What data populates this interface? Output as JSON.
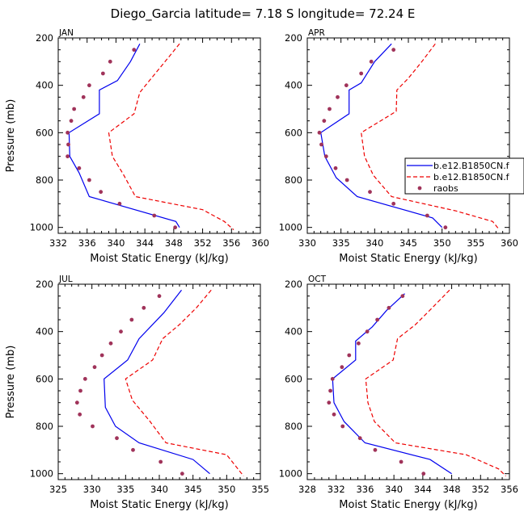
{
  "figure": {
    "title": "Diego_Garcia   latitude= 7.18 S longitude= 72.24 E",
    "series_names": [
      "b.e12.B1850CN.f",
      "b.e12.B1850CN.f",
      "raobs"
    ],
    "colors": {
      "series1": "#0000ee",
      "series2": "#ee0000",
      "raobs": "#a0335a"
    }
  },
  "legend": {
    "entries": [
      "b.e12.B1850CN.f",
      "b.e12.B1850CN.f",
      "raobs"
    ]
  },
  "chart_data": [
    {
      "type": "line",
      "panel": "JAN",
      "title": "JAN",
      "xlabel": "Moist Static Energy (kJ/kg)",
      "ylabel": "Pressure (mb)",
      "xlim": [
        332,
        360
      ],
      "ylim": [
        200,
        1025
      ],
      "xticks": [
        332,
        336,
        340,
        344,
        348,
        352,
        356,
        360
      ],
      "yticks": [
        200,
        400,
        600,
        800,
        1000
      ],
      "series": [
        {
          "name": "b.e12.B1850CN.f",
          "style": "solid",
          "points": [
            [
              343.3,
              225
            ],
            [
              342.0,
              300
            ],
            [
              340.2,
              380
            ],
            [
              337.7,
              420
            ],
            [
              337.7,
              520
            ],
            [
              333.5,
              600
            ],
            [
              333.6,
              700
            ],
            [
              334.9,
              770
            ],
            [
              336.3,
              870
            ],
            [
              348.3,
              975
            ],
            [
              348.8,
              1000
            ]
          ]
        },
        {
          "name": "b.e12.B1850CN.f",
          "style": "dashed",
          "points": [
            [
              348.8,
              225
            ],
            [
              346.8,
              300
            ],
            [
              344.9,
              370
            ],
            [
              343.3,
              430
            ],
            [
              342.5,
              520
            ],
            [
              339.0,
              600
            ],
            [
              339.5,
              700
            ],
            [
              341.0,
              775
            ],
            [
              342.7,
              870
            ],
            [
              352.0,
              925
            ],
            [
              355.0,
              975
            ],
            [
              356.3,
              1010
            ]
          ]
        },
        {
          "name": "raobs",
          "style": "dots",
          "points": [
            [
              342.5,
              250
            ],
            [
              339.2,
              300
            ],
            [
              338.2,
              350
            ],
            [
              336.3,
              400
            ],
            [
              335.5,
              450
            ],
            [
              334.2,
              500
            ],
            [
              333.8,
              550
            ],
            [
              333.3,
              600
            ],
            [
              333.4,
              650
            ],
            [
              333.3,
              700
            ],
            [
              334.9,
              750
            ],
            [
              336.3,
              800
            ],
            [
              337.9,
              850
            ],
            [
              340.5,
              900
            ],
            [
              345.3,
              950
            ],
            [
              348.2,
              1000
            ]
          ]
        }
      ]
    },
    {
      "type": "line",
      "panel": "APR",
      "title": "APR",
      "xlabel": "Moist Static Energy (kJ/kg)",
      "ylabel": "",
      "xlim": [
        330,
        360
      ],
      "ylim": [
        200,
        1025
      ],
      "xticks": [
        330,
        335,
        340,
        345,
        350,
        355,
        360
      ],
      "yticks": [
        200,
        400,
        600,
        800,
        1000
      ],
      "series": [
        {
          "name": "b.e12.B1850CN.f",
          "style": "solid",
          "points": [
            [
              342.5,
              225
            ],
            [
              340.0,
              300
            ],
            [
              338.0,
              390
            ],
            [
              336.2,
              420
            ],
            [
              336.2,
              520
            ],
            [
              332.0,
              600
            ],
            [
              332.6,
              700
            ],
            [
              334.3,
              790
            ],
            [
              337.4,
              870
            ],
            [
              348.6,
              960
            ],
            [
              350.0,
              1000
            ]
          ]
        },
        {
          "name": "b.e12.B1850CN.f",
          "style": "dashed",
          "points": [
            [
              349.0,
              225
            ],
            [
              347.0,
              300
            ],
            [
              345.0,
              370
            ],
            [
              343.3,
              420
            ],
            [
              343.2,
              510
            ],
            [
              338.0,
              600
            ],
            [
              338.5,
              700
            ],
            [
              339.8,
              780
            ],
            [
              342.5,
              870
            ],
            [
              352.0,
              930
            ],
            [
              357.5,
              975
            ],
            [
              358.5,
              1010
            ]
          ]
        },
        {
          "name": "raobs",
          "style": "dots",
          "points": [
            [
              342.8,
              250
            ],
            [
              339.5,
              300
            ],
            [
              338.0,
              350
            ],
            [
              335.8,
              400
            ],
            [
              334.5,
              450
            ],
            [
              333.3,
              500
            ],
            [
              332.5,
              550
            ],
            [
              331.8,
              600
            ],
            [
              332.1,
              650
            ],
            [
              332.8,
              700
            ],
            [
              334.2,
              750
            ],
            [
              335.9,
              800
            ],
            [
              339.3,
              850
            ],
            [
              342.8,
              900
            ],
            [
              347.8,
              950
            ],
            [
              350.5,
              1000
            ]
          ]
        }
      ]
    },
    {
      "type": "line",
      "panel": "JUL",
      "title": "JUL",
      "xlabel": "Moist Static Energy (kJ/kg)",
      "ylabel": "Pressure (mb)",
      "xlim": [
        325,
        355
      ],
      "ylim": [
        200,
        1025
      ],
      "xticks": [
        325,
        330,
        335,
        340,
        345,
        350,
        355
      ],
      "yticks": [
        200,
        400,
        600,
        800,
        1000
      ],
      "series": [
        {
          "name": "b.e12.B1850CN.f",
          "style": "solid",
          "points": [
            [
              343.3,
              225
            ],
            [
              340.7,
              320
            ],
            [
              337.0,
              430
            ],
            [
              335.3,
              520
            ],
            [
              331.8,
              600
            ],
            [
              332.0,
              720
            ],
            [
              333.5,
              800
            ],
            [
              337.0,
              870
            ],
            [
              345.0,
              940
            ],
            [
              347.5,
              1000
            ]
          ]
        },
        {
          "name": "b.e12.B1850CN.f",
          "style": "dashed",
          "points": [
            [
              347.7,
              225
            ],
            [
              345.5,
              300
            ],
            [
              343.0,
              370
            ],
            [
              340.5,
              430
            ],
            [
              339.0,
              520
            ],
            [
              335.0,
              600
            ],
            [
              336.0,
              690
            ],
            [
              338.5,
              775
            ],
            [
              341.0,
              870
            ],
            [
              350.0,
              920
            ],
            [
              352.5,
              1010
            ]
          ]
        },
        {
          "name": "raobs",
          "style": "dots",
          "points": [
            [
              340.0,
              250
            ],
            [
              337.7,
              300
            ],
            [
              335.9,
              350
            ],
            [
              334.3,
              400
            ],
            [
              332.8,
              450
            ],
            [
              331.5,
              500
            ],
            [
              330.4,
              550
            ],
            [
              329.0,
              600
            ],
            [
              328.3,
              650
            ],
            [
              327.8,
              700
            ],
            [
              328.2,
              750
            ],
            [
              330.1,
              800
            ],
            [
              333.7,
              850
            ],
            [
              336.1,
              900
            ],
            [
              340.2,
              950
            ],
            [
              343.4,
              1000
            ]
          ]
        }
      ]
    },
    {
      "type": "line",
      "panel": "OCT",
      "title": "OCT",
      "xlabel": "Moist Static Energy (kJ/kg)",
      "ylabel": "",
      "xlim": [
        328,
        356
      ],
      "ylim": [
        200,
        1025
      ],
      "xticks": [
        328,
        332,
        336,
        340,
        344,
        348,
        352,
        356
      ],
      "yticks": [
        200,
        400,
        600,
        800,
        1000
      ],
      "series": [
        {
          "name": "b.e12.B1850CN.f",
          "style": "solid",
          "points": [
            [
              341.5,
              240
            ],
            [
              339.0,
              310
            ],
            [
              337.0,
              380
            ],
            [
              334.7,
              440
            ],
            [
              334.7,
              520
            ],
            [
              331.5,
              600
            ],
            [
              331.7,
              700
            ],
            [
              333.1,
              780
            ],
            [
              336.0,
              870
            ],
            [
              345.0,
              940
            ],
            [
              348.0,
              1000
            ]
          ]
        },
        {
          "name": "b.e12.B1850CN.f",
          "style": "dashed",
          "points": [
            [
              347.7,
              225
            ],
            [
              345.3,
              300
            ],
            [
              343.0,
              370
            ],
            [
              340.5,
              430
            ],
            [
              339.9,
              520
            ],
            [
              336.1,
              600
            ],
            [
              336.4,
              700
            ],
            [
              337.3,
              780
            ],
            [
              340.2,
              870
            ],
            [
              350.0,
              920
            ],
            [
              354.5,
              980
            ],
            [
              355.5,
              1010
            ]
          ]
        },
        {
          "name": "raobs",
          "style": "dots",
          "points": [
            [
              341.2,
              250
            ],
            [
              339.3,
              300
            ],
            [
              337.7,
              350
            ],
            [
              336.3,
              400
            ],
            [
              335.1,
              450
            ],
            [
              333.8,
              500
            ],
            [
              332.8,
              550
            ],
            [
              331.5,
              600
            ],
            [
              331.2,
              650
            ],
            [
              331.0,
              700
            ],
            [
              331.7,
              750
            ],
            [
              332.9,
              800
            ],
            [
              335.3,
              850
            ],
            [
              337.4,
              900
            ],
            [
              341.0,
              950
            ],
            [
              344.1,
              1000
            ]
          ]
        }
      ]
    }
  ]
}
